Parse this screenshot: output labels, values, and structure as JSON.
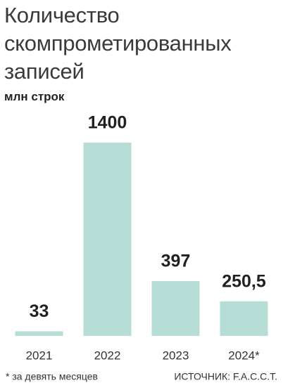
{
  "chart_data": {
    "type": "bar",
    "title": "Количество скомпрометированных записей",
    "subtitle": "млн строк",
    "categories": [
      "2021",
      "2022",
      "2023",
      "2024*"
    ],
    "values": [
      33,
      1400,
      397,
      250.5
    ],
    "value_labels": [
      "33",
      "1400",
      "397",
      "250,5"
    ],
    "color": "#b6ddd5",
    "footnote": "* за девять месяцев",
    "source": "ИСТОЧНИК: F.A.C.C.T."
  }
}
